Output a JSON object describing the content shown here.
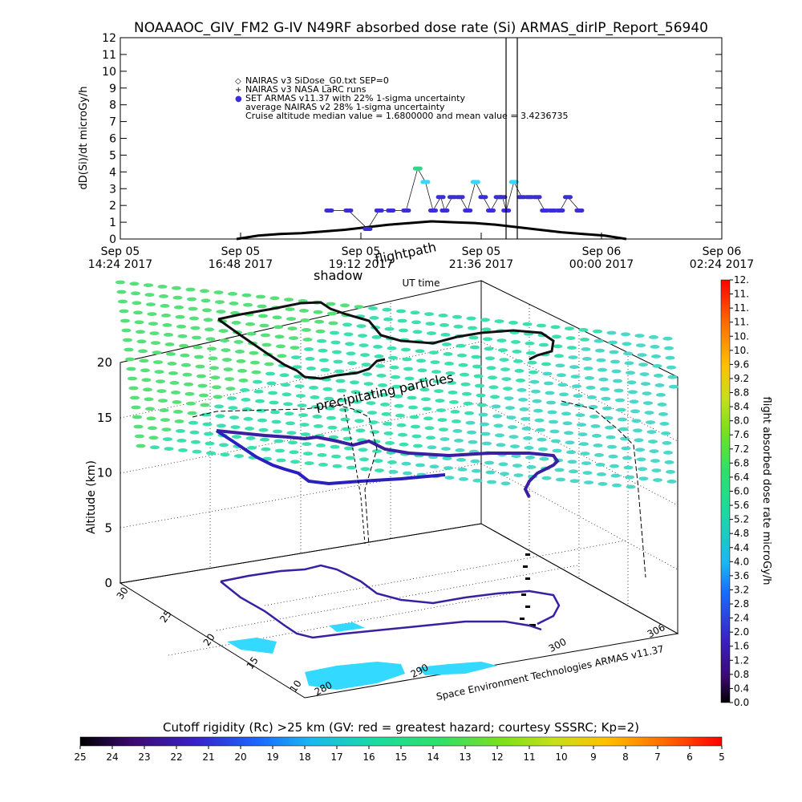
{
  "page_title": "NOAAAOC_GIV_FM2 G-IV   N49RF  absorbed dose rate (Si) ARMAS_dirIP_Report_56940",
  "chart_data": [
    {
      "type": "scatter",
      "ylabel": "dD(Si)/dt microGy/h",
      "xlabel": "UT time",
      "ylim": [
        0,
        12
      ],
      "yticks": [
        "0",
        "1",
        "2",
        "3",
        "4",
        "5",
        "6",
        "7",
        "8",
        "9",
        "10",
        "11",
        "12"
      ],
      "xticks": [
        {
          "date": "Sep 05",
          "time": "14:24 2017"
        },
        {
          "date": "Sep 05",
          "time": "16:48 2017"
        },
        {
          "date": "Sep 05",
          "time": "19:12 2017"
        },
        {
          "date": "Sep 05",
          "time": "21:36 2017"
        },
        {
          "date": "Sep 06",
          "time": "00:00 2017"
        },
        {
          "date": "Sep 06",
          "time": "02:24 2017"
        }
      ],
      "legend": [
        {
          "marker": "◇",
          "text": "NAIRAS v3 SiDose_G0.txt SEP=0",
          "color": "#000000"
        },
        {
          "marker": "+",
          "text": "NAIRAS v3 NASA LaRC runs",
          "color": "#000000"
        },
        {
          "marker": "●",
          "text": "SET ARMAS v11.37 with 22% 1-sigma uncertainty",
          "color": "#3a2fd6"
        },
        {
          "marker": "",
          "text": "average NAIRAS v2 28% 1-sigma uncertainty",
          "color": "#000000"
        },
        {
          "marker": "",
          "text": "Cruise altitude median value = 1.6800000 and mean value = 3.4236735",
          "color": "#000000"
        }
      ],
      "series": [
        {
          "name": "SET ARMAS v11.37 with 22% 1-sigma uncertainty",
          "x": [
            0.2,
            0.25,
            0.3,
            0.33,
            0.36,
            0.4,
            0.43,
            0.45,
            0.47,
            0.49,
            0.5,
            0.52,
            0.54,
            0.56,
            0.58,
            0.6,
            0.62,
            0.64,
            0.65,
            0.66,
            0.68,
            0.7,
            0.72,
            0.74,
            0.76,
            0.78,
            0.8,
            0.82,
            0.85
          ],
          "values": [
            1.7,
            1.7,
            0.6,
            1.7,
            1.7,
            1.7,
            4.2,
            3.4,
            1.7,
            2.5,
            1.7,
            2.5,
            2.5,
            1.7,
            3.4,
            2.5,
            1.7,
            2.5,
            2.5,
            1.7,
            3.4,
            2.5,
            2.5,
            2.5,
            1.7,
            1.7,
            1.7,
            2.5,
            1.7
          ],
          "color": "#3a2fd6"
        },
        {
          "name": "NAIRAS v3 SiDose_G0.txt SEP=0",
          "x": [
            0.0,
            0.05,
            0.1,
            0.15,
            0.2,
            0.25,
            0.3,
            0.35,
            0.4,
            0.45,
            0.5,
            0.55,
            0.6,
            0.65,
            0.7,
            0.75,
            0.8,
            0.85,
            0.9
          ],
          "values": [
            0.0,
            0.2,
            0.3,
            0.35,
            0.45,
            0.55,
            0.7,
            0.85,
            0.95,
            1.05,
            1.0,
            0.95,
            0.85,
            0.7,
            0.55,
            0.4,
            0.3,
            0.2,
            0.0
          ],
          "color": "#000000"
        }
      ],
      "spike_values": [
        12,
        12
      ]
    },
    {
      "type": "heatmap",
      "zlabel": "Altitude (km)",
      "zticks": [
        "0",
        "5",
        "10",
        "15",
        "20"
      ],
      "y_ticks": [
        "10",
        "15",
        "20",
        "25",
        "30"
      ],
      "x_ticks": [
        "280",
        "290",
        "300",
        "306"
      ],
      "annotations": [
        "shadow",
        "flightpath",
        "precipitating particles"
      ],
      "credit": "Space Environment Technologies ARMAS v11.37"
    },
    {
      "type": "heatmap",
      "colorbar_label": "flight absorbed dose rate microGy/h",
      "colorbar_ticks": [
        "0.0",
        "0.4",
        "0.8",
        "1.2",
        "1.6",
        "2.0",
        "2.4",
        "2.8",
        "3.2",
        "3.6",
        "4.0",
        "4.4",
        "4.8",
        "5.2",
        "5.6",
        "6.0",
        "6.4",
        "6.8",
        "7.2",
        "7.6",
        "8.0",
        "8.4",
        "8.8",
        "9.2",
        "9.6",
        "10.",
        "10.",
        "11.",
        "11.",
        "11.",
        "12."
      ]
    },
    {
      "type": "heatmap",
      "colorbar_label": "Cutoff rigidity (Rc) >25 km (GV: red = greatest hazard; courtesy SSSRC; Kp=2)",
      "colorbar_ticks": [
        "25",
        "24",
        "23",
        "22",
        "21",
        "20",
        "19",
        "18",
        "17",
        "16",
        "15",
        "14",
        "13",
        "12",
        "11",
        "10",
        "9",
        "8",
        "7",
        "6",
        "5"
      ]
    }
  ]
}
